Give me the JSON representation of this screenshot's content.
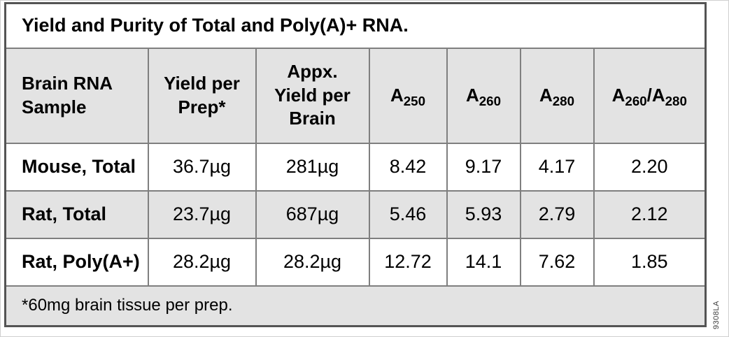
{
  "title": "Yield and Purity of Total and Poly(A)+ RNA.",
  "table": {
    "columns": [
      "Brain RNA\nSample",
      "Yield per\nPrep*",
      "Appx.\nYield per\nBrain",
      "A_{250}",
      "A_{260}",
      "A_{280}",
      "A_{260}/A_{280}"
    ],
    "rows": [
      {
        "sample": "Mouse, Total",
        "values": [
          "36.7µg",
          "281µg",
          "8.42",
          "9.17",
          "4.17",
          "2.20"
        ],
        "shaded": false
      },
      {
        "sample": "Rat, Total",
        "values": [
          "23.7µg",
          "687µg",
          "5.46",
          "5.93",
          "2.79",
          "2.12"
        ],
        "shaded": true
      },
      {
        "sample": "Rat, Poly(A+)",
        "values": [
          "28.2µg",
          "28.2µg",
          "12.72",
          "14.1",
          "7.62",
          "1.85"
        ],
        "shaded": false
      }
    ],
    "footnote": "*60mg brain tissue per prep."
  },
  "watermark": "9308LA",
  "colors": {
    "shaded_cell": "#e3e3e3",
    "inner_border": "#7f7f7f",
    "outer_border": "#545454",
    "text": "#000000"
  }
}
